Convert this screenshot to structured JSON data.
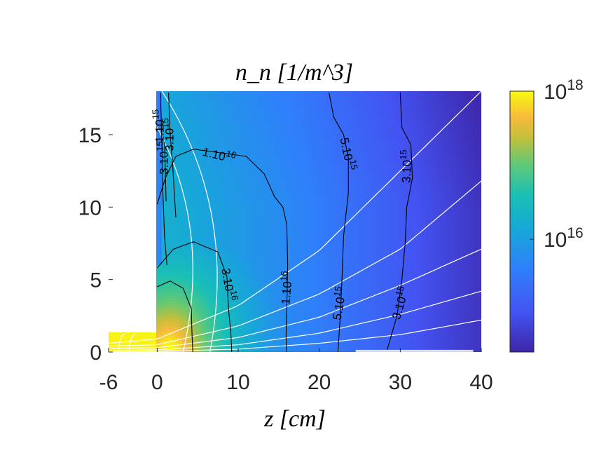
{
  "chart_data": {
    "type": "heatmap",
    "title": "n_n [1/m^3]",
    "xlabel": "z [cm]",
    "ylabel": "",
    "xlim": [
      -6,
      40
    ],
    "ylim": [
      0,
      18
    ],
    "x_ticks": [
      "-6",
      "0",
      "10",
      "20",
      "30",
      "40"
    ],
    "y_ticks": [
      "0",
      "5",
      "10",
      "15"
    ],
    "colorbar": {
      "scale": "log",
      "range": [
        300000000000000.0,
        1e+18
      ],
      "colormap": "parula",
      "tick_labels": [
        {
          "value": 1e+18,
          "base": "10",
          "exp": "18"
        },
        {
          "value": 1e+16,
          "base": "10",
          "exp": "16"
        }
      ]
    },
    "grid": false,
    "legend": "none",
    "contours": [
      {
        "value": 3e+16,
        "label": "3.10 16"
      },
      {
        "value": 1e+16,
        "label": "1.10 16"
      },
      {
        "value": 5000000000000000.0,
        "label": "5.10 15"
      },
      {
        "value": 3000000000000000.0,
        "label": "3.10 15"
      },
      {
        "value": 1000000000000000.0,
        "label": "1.10 15"
      }
    ],
    "contour_labels": [
      {
        "text": "1.10",
        "exp": "16",
        "x": 7.5,
        "y": 13.3,
        "rot": 14
      },
      {
        "text": "5.10",
        "exp": "15",
        "x": 23.0,
        "y": 13.6,
        "rot": 78
      },
      {
        "text": "3.10",
        "exp": "15",
        "x": 31.3,
        "y": 12.8,
        "rot": -88
      },
      {
        "text": "3.10",
        "exp": "16",
        "x": 8.3,
        "y": 4.6,
        "rot": 80
      },
      {
        "text": "1.10",
        "exp": "16",
        "x": 16.5,
        "y": 4.4,
        "rot": -85
      },
      {
        "text": "5.10",
        "exp": "15",
        "x": 23.0,
        "y": 3.3,
        "rot": -80
      },
      {
        "text": "3.10",
        "exp": "15",
        "x": 30.5,
        "y": 3.3,
        "rot": -74
      },
      {
        "text": "1.10",
        "exp": "15",
        "x": 0.8,
        "y": 15.6,
        "rot": -90
      },
      {
        "text": "3.10",
        "exp": "15",
        "x": 2.0,
        "y": 15.0,
        "rot": -90
      },
      {
        "text": "3.10",
        "exp": "15",
        "x": 1.3,
        "y": 13.4,
        "rot": -90
      }
    ],
    "field_lines": [
      {
        "name": "",
        "x": [
          -6,
          0,
          10,
          20,
          30,
          40
        ],
        "y": [
          0.02,
          0.04,
          0.2,
          0.6,
          1.2,
          2.2
        ]
      },
      {
        "name": "",
        "x": [
          -6,
          0,
          10,
          20,
          30,
          40
        ],
        "y": [
          0.1,
          0.15,
          0.5,
          1.3,
          2.6,
          4.2
        ]
      },
      {
        "name": "",
        "x": [
          -6,
          0,
          10,
          20,
          30,
          40
        ],
        "y": [
          0.25,
          0.3,
          1.0,
          2.4,
          4.6,
          7.1
        ]
      },
      {
        "name": "",
        "x": [
          -6,
          0,
          10,
          20,
          30,
          40
        ],
        "y": [
          0.4,
          0.5,
          1.8,
          4.0,
          7.1,
          11.8
        ]
      },
      {
        "name": "",
        "x": [
          -6,
          0,
          10,
          20,
          30,
          40
        ],
        "y": [
          0.6,
          0.9,
          3.2,
          7.0,
          12.5,
          18
        ]
      }
    ]
  }
}
